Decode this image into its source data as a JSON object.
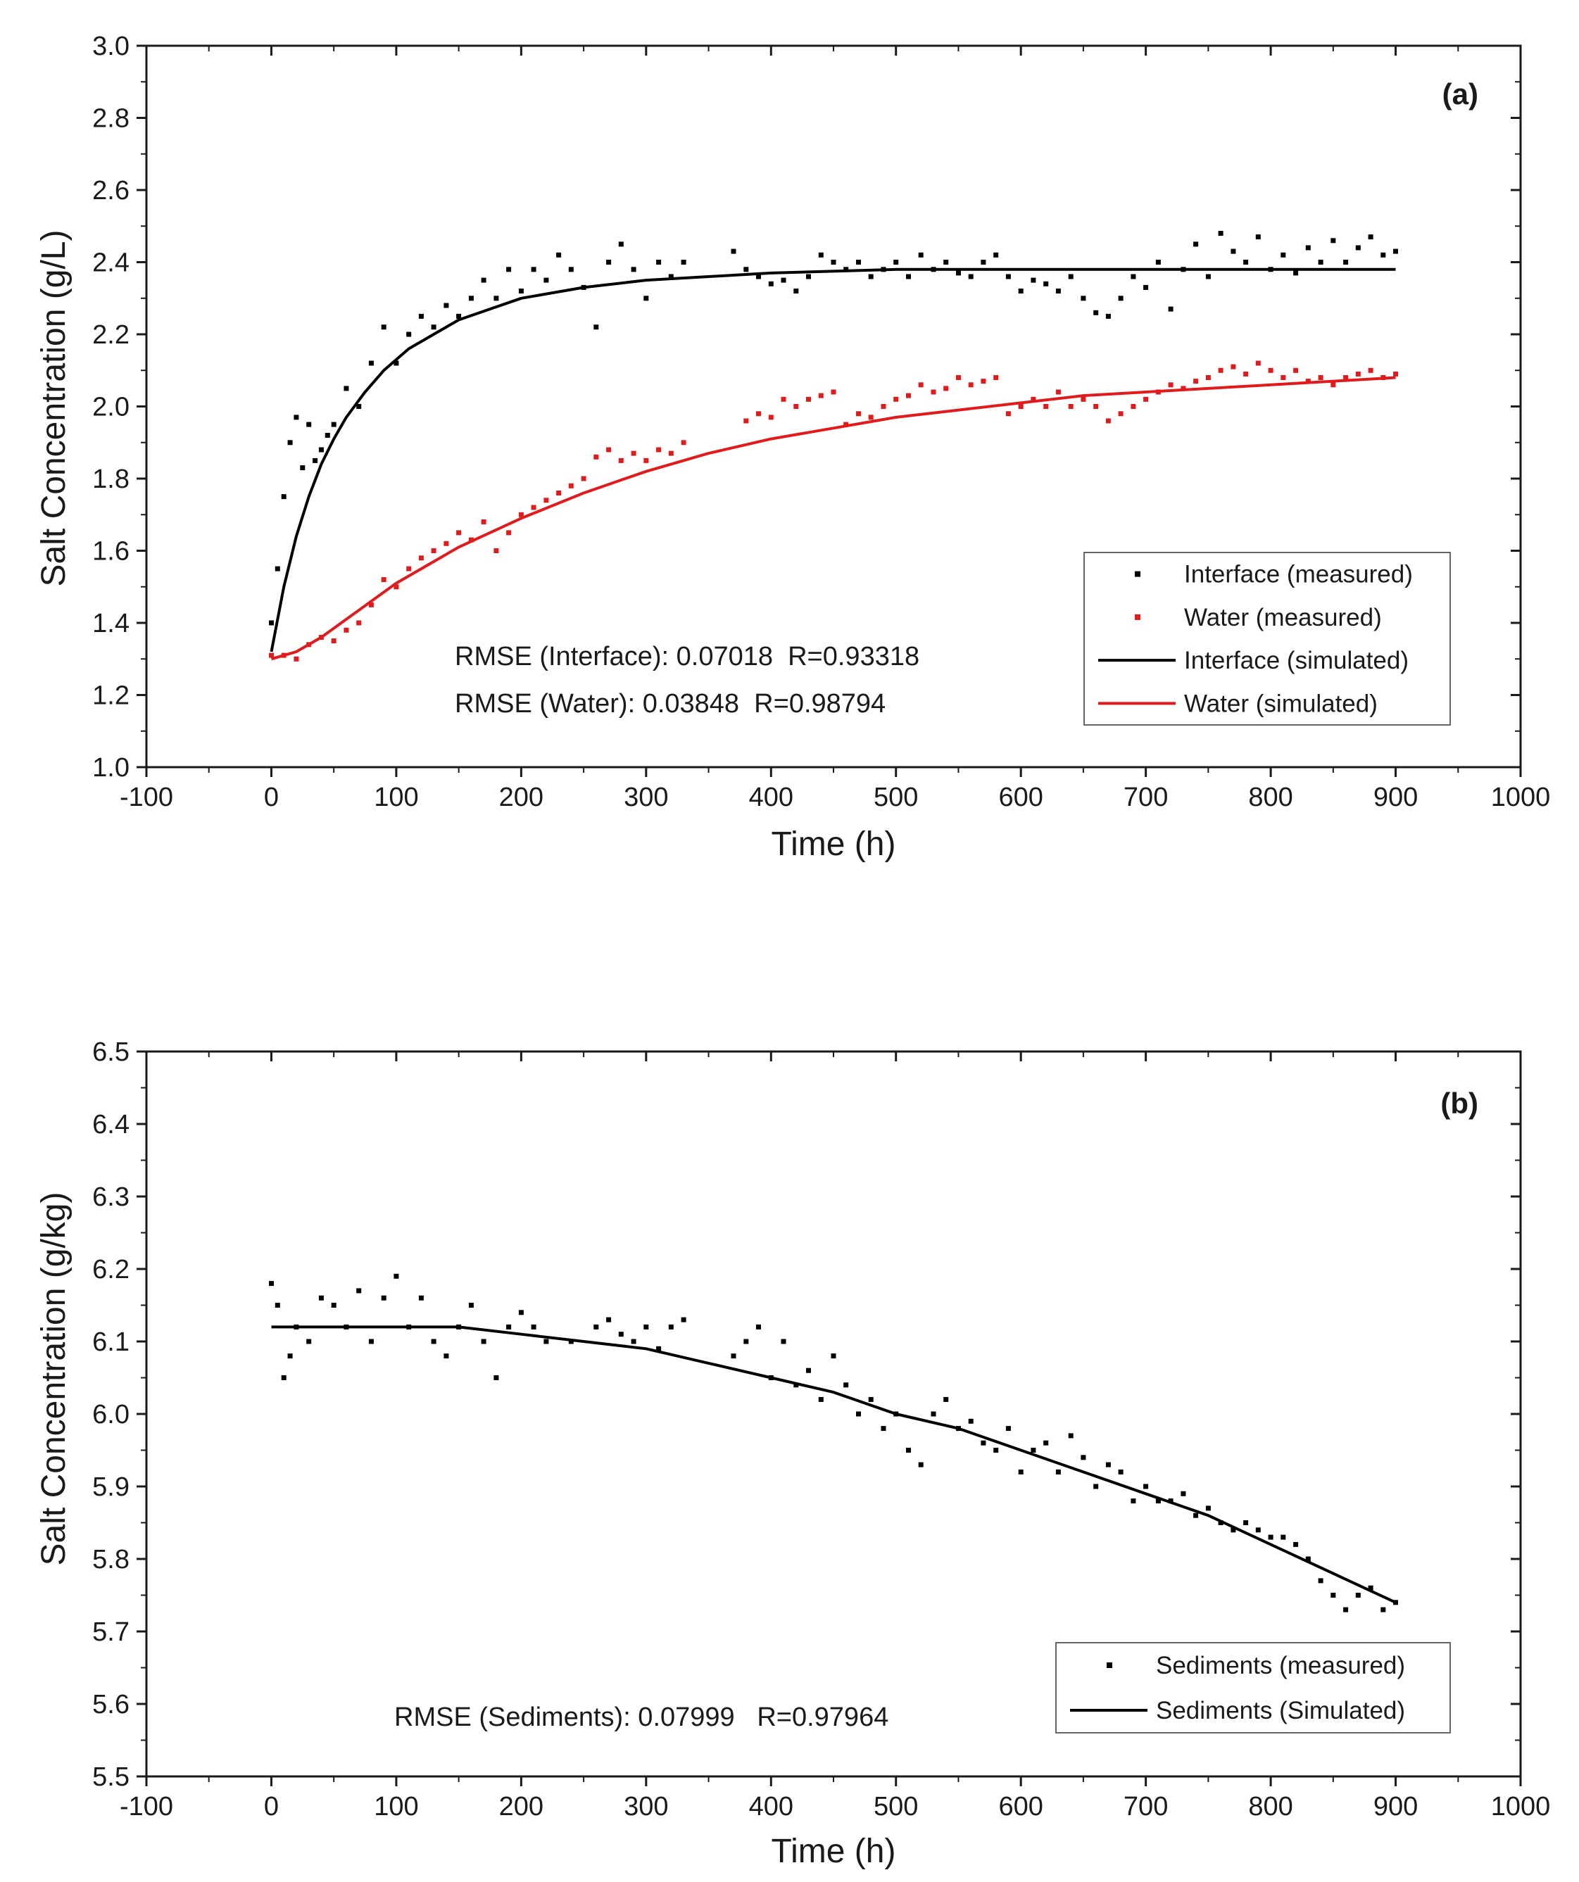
{
  "chart_data": [
    {
      "type": "scatter",
      "panel_label": "(a)",
      "title": "",
      "xlabel": "Time (h)",
      "ylabel": "Salt Concentration (g/L)",
      "xlim": [
        -100,
        1000
      ],
      "ylim": [
        1.0,
        3.0
      ],
      "xticks": [
        -100,
        0,
        100,
        200,
        300,
        400,
        500,
        600,
        700,
        800,
        900,
        1000
      ],
      "yticks": [
        "1.0",
        "1.2",
        "1.4",
        "1.6",
        "1.8",
        "2.0",
        "2.2",
        "2.4",
        "2.6",
        "2.8",
        "3.0"
      ],
      "legend_position": "bottom-right",
      "annotations": [
        "RMSE (Interface): 0.07018  R=0.93318",
        "RMSE (Water): 0.03848  R=0.98794"
      ],
      "series": [
        {
          "name": "Interface (measured)",
          "kind": "scatter",
          "color": "#000000",
          "x": [
            0,
            5,
            10,
            15,
            20,
            25,
            30,
            35,
            40,
            45,
            50,
            60,
            70,
            80,
            90,
            100,
            110,
            120,
            130,
            140,
            150,
            160,
            170,
            180,
            190,
            200,
            210,
            220,
            230,
            240,
            250,
            260,
            270,
            280,
            290,
            300,
            310,
            320,
            330,
            370,
            380,
            390,
            400,
            410,
            420,
            430,
            440,
            450,
            460,
            470,
            480,
            490,
            500,
            510,
            520,
            530,
            540,
            550,
            560,
            570,
            580,
            590,
            600,
            610,
            620,
            630,
            640,
            650,
            660,
            670,
            680,
            690,
            700,
            710,
            720,
            730,
            740,
            750,
            760,
            770,
            780,
            790,
            800,
            810,
            820,
            830,
            840,
            850,
            860,
            870,
            880,
            890,
            900
          ],
          "y": [
            1.4,
            1.55,
            1.75,
            1.9,
            1.97,
            1.83,
            1.95,
            1.85,
            1.88,
            1.92,
            1.95,
            2.05,
            2.0,
            2.12,
            2.22,
            2.12,
            2.2,
            2.25,
            2.22,
            2.28,
            2.25,
            2.3,
            2.35,
            2.3,
            2.38,
            2.32,
            2.38,
            2.35,
            2.42,
            2.38,
            2.33,
            2.22,
            2.4,
            2.45,
            2.38,
            2.3,
            2.4,
            2.36,
            2.4,
            2.43,
            2.38,
            2.36,
            2.34,
            2.35,
            2.32,
            2.36,
            2.42,
            2.4,
            2.38,
            2.4,
            2.36,
            2.38,
            2.4,
            2.36,
            2.42,
            2.38,
            2.4,
            2.37,
            2.36,
            2.4,
            2.42,
            2.36,
            2.32,
            2.35,
            2.34,
            2.32,
            2.36,
            2.3,
            2.26,
            2.25,
            2.3,
            2.36,
            2.33,
            2.4,
            2.27,
            2.38,
            2.45,
            2.36,
            2.48,
            2.43,
            2.4,
            2.47,
            2.38,
            2.42,
            2.37,
            2.44,
            2.4,
            2.46,
            2.4,
            2.44,
            2.47,
            2.42,
            2.43
          ]
        },
        {
          "name": "Water (measured)",
          "kind": "scatter",
          "color": "#e31a1c",
          "x": [
            0,
            10,
            20,
            30,
            40,
            50,
            60,
            70,
            80,
            90,
            100,
            110,
            120,
            130,
            140,
            150,
            160,
            170,
            180,
            190,
            200,
            210,
            220,
            230,
            240,
            250,
            260,
            270,
            280,
            290,
            300,
            310,
            320,
            330,
            380,
            390,
            400,
            410,
            420,
            430,
            440,
            450,
            460,
            470,
            480,
            490,
            500,
            510,
            520,
            530,
            540,
            550,
            560,
            570,
            580,
            590,
            600,
            610,
            620,
            630,
            640,
            650,
            660,
            670,
            680,
            690,
            700,
            710,
            720,
            730,
            740,
            750,
            760,
            770,
            780,
            790,
            800,
            810,
            820,
            830,
            840,
            850,
            860,
            870,
            880,
            890,
            900
          ],
          "y": [
            1.31,
            1.31,
            1.3,
            1.34,
            1.36,
            1.35,
            1.38,
            1.4,
            1.45,
            1.52,
            1.5,
            1.55,
            1.58,
            1.6,
            1.62,
            1.65,
            1.63,
            1.68,
            1.6,
            1.65,
            1.7,
            1.72,
            1.74,
            1.76,
            1.78,
            1.8,
            1.86,
            1.88,
            1.85,
            1.87,
            1.85,
            1.88,
            1.87,
            1.9,
            1.96,
            1.98,
            1.97,
            2.02,
            2.0,
            2.02,
            2.03,
            2.04,
            1.95,
            1.98,
            1.97,
            2.0,
            2.02,
            2.03,
            2.06,
            2.04,
            2.05,
            2.08,
            2.06,
            2.07,
            2.08,
            1.98,
            2.0,
            2.02,
            2.0,
            2.04,
            2.0,
            2.02,
            2.0,
            1.96,
            1.98,
            2.0,
            2.02,
            2.04,
            2.06,
            2.05,
            2.07,
            2.08,
            2.1,
            2.11,
            2.09,
            2.12,
            2.1,
            2.08,
            2.1,
            2.07,
            2.08,
            2.06,
            2.08,
            2.09,
            2.1,
            2.08,
            2.09
          ]
        },
        {
          "name": "Interface (simulated)",
          "kind": "line",
          "color": "#000000",
          "x": [
            0,
            10,
            20,
            30,
            40,
            50,
            60,
            75,
            90,
            110,
            130,
            150,
            175,
            200,
            250,
            300,
            350,
            400,
            500,
            600,
            700,
            800,
            900
          ],
          "y": [
            1.32,
            1.5,
            1.64,
            1.75,
            1.84,
            1.91,
            1.97,
            2.04,
            2.1,
            2.16,
            2.2,
            2.24,
            2.27,
            2.3,
            2.33,
            2.35,
            2.36,
            2.37,
            2.38,
            2.38,
            2.38,
            2.38,
            2.38
          ]
        },
        {
          "name": "Water (simulated)",
          "kind": "line",
          "color": "#e31a1c",
          "x": [
            0,
            20,
            40,
            60,
            80,
            100,
            125,
            150,
            175,
            200,
            250,
            300,
            350,
            400,
            450,
            500,
            550,
            600,
            650,
            700,
            750,
            800,
            850,
            900
          ],
          "y": [
            1.3,
            1.32,
            1.36,
            1.41,
            1.46,
            1.51,
            1.56,
            1.61,
            1.65,
            1.69,
            1.76,
            1.82,
            1.87,
            1.91,
            1.94,
            1.97,
            1.99,
            2.01,
            2.03,
            2.04,
            2.05,
            2.06,
            2.07,
            2.08
          ]
        }
      ]
    },
    {
      "type": "scatter",
      "panel_label": "(b)",
      "title": "",
      "xlabel": "Time (h)",
      "ylabel": "Salt Concentration (g/kg)",
      "xlim": [
        -100,
        1000
      ],
      "ylim": [
        5.5,
        6.5
      ],
      "xticks": [
        -100,
        0,
        100,
        200,
        300,
        400,
        500,
        600,
        700,
        800,
        900,
        1000
      ],
      "yticks": [
        "5.5",
        "5.6",
        "5.7",
        "5.8",
        "5.9",
        "6.0",
        "6.1",
        "6.2",
        "6.3",
        "6.4",
        "6.5"
      ],
      "legend_position": "bottom-right",
      "annotations": [
        "RMSE (Sediments): 0.07999   R=0.97964"
      ],
      "series": [
        {
          "name": "Sediments (measured)",
          "kind": "scatter",
          "color": "#000000",
          "x": [
            0,
            5,
            10,
            15,
            20,
            30,
            40,
            50,
            60,
            70,
            80,
            90,
            100,
            110,
            120,
            130,
            140,
            150,
            160,
            170,
            180,
            190,
            200,
            210,
            220,
            240,
            260,
            270,
            280,
            290,
            300,
            310,
            320,
            330,
            370,
            380,
            390,
            400,
            410,
            420,
            430,
            440,
            450,
            460,
            470,
            480,
            490,
            500,
            510,
            520,
            530,
            540,
            550,
            560,
            570,
            580,
            590,
            600,
            610,
            620,
            630,
            640,
            650,
            660,
            670,
            680,
            690,
            700,
            710,
            720,
            730,
            740,
            750,
            760,
            770,
            780,
            790,
            800,
            810,
            820,
            830,
            840,
            850,
            860,
            870,
            880,
            890,
            900
          ],
          "y": [
            6.18,
            6.15,
            6.05,
            6.08,
            6.12,
            6.1,
            6.16,
            6.15,
            6.12,
            6.17,
            6.1,
            6.16,
            6.19,
            6.12,
            6.16,
            6.1,
            6.08,
            6.12,
            6.15,
            6.1,
            6.05,
            6.12,
            6.14,
            6.12,
            6.1,
            6.1,
            6.12,
            6.13,
            6.11,
            6.1,
            6.12,
            6.09,
            6.12,
            6.13,
            6.08,
            6.1,
            6.12,
            6.05,
            6.1,
            6.04,
            6.06,
            6.02,
            6.08,
            6.04,
            6.0,
            6.02,
            5.98,
            6.0,
            5.95,
            5.93,
            6.0,
            6.02,
            5.98,
            5.99,
            5.96,
            5.95,
            5.98,
            5.92,
            5.95,
            5.96,
            5.92,
            5.97,
            5.94,
            5.9,
            5.93,
            5.92,
            5.88,
            5.9,
            5.88,
            5.88,
            5.89,
            5.86,
            5.87,
            5.85,
            5.84,
            5.85,
            5.84,
            5.83,
            5.83,
            5.82,
            5.8,
            5.77,
            5.75,
            5.73,
            5.75,
            5.76,
            5.73,
            5.74
          ]
        },
        {
          "name": "Sediments (Simulated)",
          "kind": "line",
          "color": "#000000",
          "x": [
            0,
            50,
            100,
            150,
            200,
            250,
            300,
            350,
            400,
            450,
            500,
            550,
            600,
            650,
            700,
            750,
            800,
            850,
            900
          ],
          "y": [
            6.12,
            6.12,
            6.12,
            6.12,
            6.11,
            6.1,
            6.09,
            6.07,
            6.05,
            6.03,
            6.0,
            5.98,
            5.95,
            5.92,
            5.89,
            5.86,
            5.82,
            5.78,
            5.74
          ]
        }
      ]
    }
  ]
}
